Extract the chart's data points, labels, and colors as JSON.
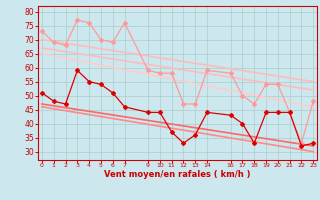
{
  "xlabel": "Vent moyen/en rafales ( km/h )",
  "background_color": "#cce8ee",
  "grid_color": "#aacccc",
  "x_ticks": [
    0,
    1,
    2,
    3,
    4,
    5,
    6,
    7,
    9,
    10,
    11,
    12,
    13,
    14,
    16,
    17,
    18,
    19,
    20,
    21,
    22,
    23
  ],
  "xlim": [
    -0.3,
    23.3
  ],
  "ylim": [
    27,
    82
  ],
  "yticks": [
    30,
    35,
    40,
    45,
    50,
    55,
    60,
    65,
    70,
    75,
    80
  ],
  "lines": [
    {
      "x": [
        0,
        1,
        2,
        3,
        4,
        5,
        6,
        7,
        9,
        10,
        11,
        12,
        13,
        14,
        16,
        17,
        18,
        19,
        20,
        21,
        22,
        23
      ],
      "y": [
        73,
        69,
        68,
        77,
        76,
        70,
        69,
        76,
        59,
        58,
        58,
        47,
        47,
        59,
        58,
        50,
        47,
        54,
        54,
        44,
        33,
        48
      ],
      "color": "#ff9999",
      "linewidth": 0.9,
      "marker": "D",
      "markersize": 2.0,
      "zorder": 4
    },
    {
      "x": [
        0,
        23
      ],
      "y": [
        70,
        55
      ],
      "color": "#ffbbbb",
      "linewidth": 1.2,
      "marker": null,
      "zorder": 2
    },
    {
      "x": [
        0,
        23
      ],
      "y": [
        67,
        52
      ],
      "color": "#ffbbbb",
      "linewidth": 1.2,
      "marker": null,
      "zorder": 2
    },
    {
      "x": [
        0,
        23
      ],
      "y": [
        65,
        46
      ],
      "color": "#ffcccc",
      "linewidth": 1.2,
      "marker": null,
      "zorder": 2
    },
    {
      "x": [
        0,
        1,
        2,
        3,
        4,
        5,
        6,
        7,
        9,
        10,
        11,
        12,
        13,
        14,
        16,
        17,
        18,
        19,
        20,
        21,
        22,
        23
      ],
      "y": [
        51,
        48,
        47,
        59,
        55,
        54,
        51,
        46,
        44,
        44,
        37,
        33,
        36,
        44,
        43,
        40,
        33,
        44,
        44,
        44,
        32,
        33
      ],
      "color": "#dd0000",
      "linewidth": 0.9,
      "marker": "D",
      "markersize": 2.0,
      "zorder": 5
    },
    {
      "x": [
        0,
        23
      ],
      "y": [
        47,
        32
      ],
      "color": "#ff6666",
      "linewidth": 1.2,
      "marker": null,
      "zorder": 2
    },
    {
      "x": [
        0,
        23
      ],
      "y": [
        46,
        30
      ],
      "color": "#ff8888",
      "linewidth": 1.2,
      "marker": null,
      "zorder": 2
    }
  ]
}
